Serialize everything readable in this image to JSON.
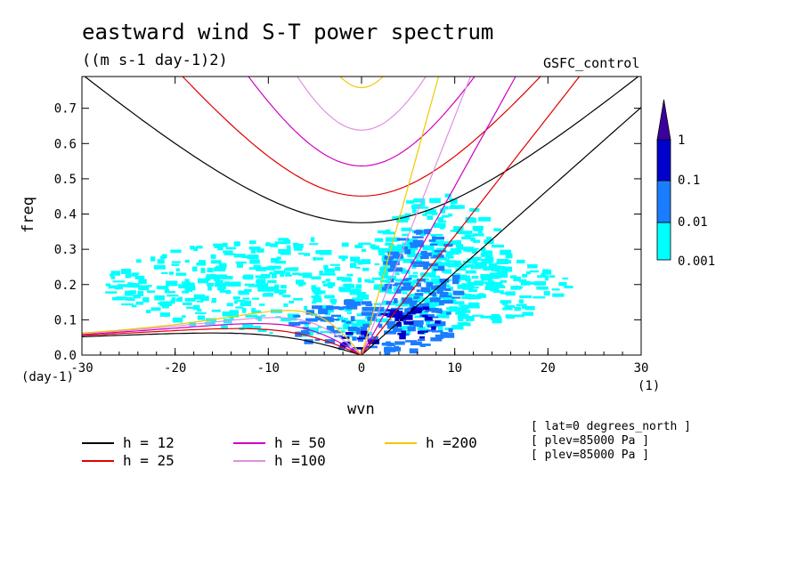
{
  "chart_data": {
    "type": "heatmap",
    "title": "eastward wind S-T power spectrum",
    "subtitle": "((m s-1 day-1)2)",
    "right_title": "GSFC_control",
    "xlabel": "wvn",
    "ylabel": "freq",
    "x_unit": "(1)",
    "y_unit": "(day-1)",
    "xlim": [
      -30,
      30
    ],
    "ylim": [
      0,
      0.79
    ],
    "xticks": [
      -30,
      -20,
      -10,
      0,
      10,
      20,
      30
    ],
    "yticks": [
      0.0,
      0.1,
      0.2,
      0.3,
      0.4,
      0.5,
      0.6,
      0.7
    ],
    "xtick_labels": [
      "-30",
      "-20",
      "-10",
      "0",
      "10",
      "20",
      "30"
    ],
    "ytick_labels": [
      "0.0",
      "0.1",
      "0.2",
      "0.3",
      "0.4",
      "0.5",
      "0.6",
      "0.7"
    ],
    "colorbar": {
      "levels": [
        0.001,
        0.01,
        0.1,
        1
      ],
      "labels": [
        "0.001",
        "0.01",
        "0.1",
        "1"
      ],
      "colors": [
        "#00ffff",
        "#1a7dff",
        "#0000cc",
        "#3c00a0"
      ]
    },
    "dispersion_curves": [
      {
        "label": "h = 12",
        "h": 12,
        "color": "#000000"
      },
      {
        "label": "h = 25",
        "h": 25,
        "color": "#e00000"
      },
      {
        "label": "h = 50",
        "h": 50,
        "color": "#d000c0"
      },
      {
        "label": "h =100",
        "h": 100,
        "color": "#e090e0"
      },
      {
        "label": "h =200",
        "h": 200,
        "color": "#f0c800"
      }
    ],
    "spectrum_regions": [
      {
        "level": 0.001,
        "cx": -3,
        "cy": 0.2,
        "rx": 25,
        "ry": 0.14
      },
      {
        "level": 0.001,
        "cx": 8,
        "cy": 0.28,
        "rx": 7,
        "ry": 0.18
      },
      {
        "level": 0.01,
        "cx": 1,
        "cy": 0.09,
        "rx": 9,
        "ry": 0.08
      },
      {
        "level": 0.01,
        "cx": 6,
        "cy": 0.22,
        "rx": 4,
        "ry": 0.14
      },
      {
        "level": 0.1,
        "cx": 5,
        "cy": 0.1,
        "rx": 3.5,
        "ry": 0.05
      },
      {
        "level": 0.1,
        "cx": -1,
        "cy": 0.05,
        "rx": 2,
        "ry": 0.03
      }
    ],
    "info": [
      "[ lat=0 degrees_north ]",
      "[ plev=85000 Pa ]",
      "[ plev=85000 Pa ]"
    ]
  }
}
